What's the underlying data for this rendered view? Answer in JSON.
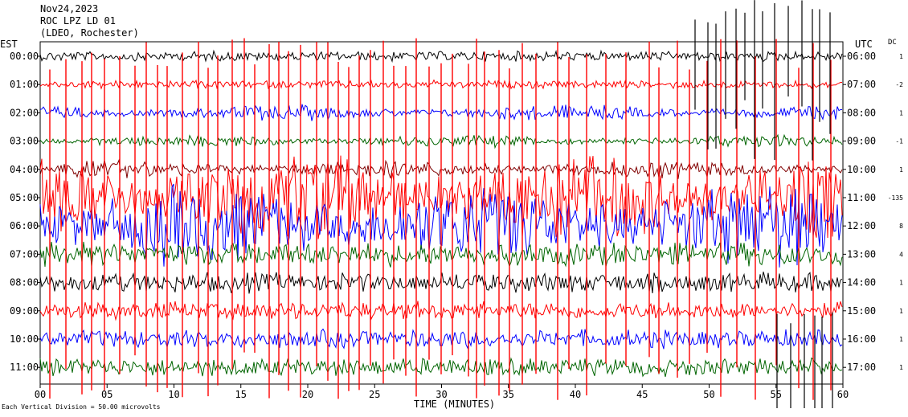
{
  "header": {
    "date": "Nov24,2023",
    "station": "ROC LPZ LD 01",
    "network": "(LDEO, Rochester)"
  },
  "axis": {
    "left_zone": "EST",
    "right_zone": "UTC",
    "dc_header": "DC",
    "xlabel": "TIME (MINUTES)",
    "footnote": "Each Vertical Division = 50.00 microvolts"
  },
  "chart_data": {
    "type": "line",
    "title": "",
    "xlabel": "TIME (MINUTES)",
    "xlim": [
      0,
      60
    ],
    "x_ticks": [
      "00",
      "05",
      "10",
      "15",
      "20",
      "25",
      "30",
      "35",
      "40",
      "45",
      "50",
      "55",
      "60"
    ],
    "grid": false,
    "rows": [
      {
        "est": "00:00",
        "utc": "06:00",
        "dc": "1",
        "color": "#000000"
      },
      {
        "est": "01:00",
        "utc": "07:00",
        "dc": "-2",
        "color": "#ff0000"
      },
      {
        "est": "02:00",
        "utc": "08:00",
        "dc": "1",
        "color": "#0000ff"
      },
      {
        "est": "03:00",
        "utc": "09:00",
        "dc": "-1",
        "color": "#006400"
      },
      {
        "est": "04:00",
        "utc": "10:00",
        "dc": "1",
        "color": "#800000"
      },
      {
        "est": "05:00",
        "utc": "11:00",
        "dc": "-135",
        "color": "#ff0000"
      },
      {
        "est": "06:00",
        "utc": "12:00",
        "dc": "8",
        "color": "#0000ff"
      },
      {
        "est": "07:00",
        "utc": "13:00",
        "dc": "4",
        "color": "#006400"
      },
      {
        "est": "08:00",
        "utc": "14:00",
        "dc": "1",
        "color": "#000000"
      },
      {
        "est": "09:00",
        "utc": "15:00",
        "dc": "1",
        "color": "#ff0000"
      },
      {
        "est": "10:00",
        "utc": "16:00",
        "dc": "1",
        "color": "#0000ff"
      },
      {
        "est": "11:00",
        "utc": "17:00",
        "dc": "1",
        "color": "#006400"
      }
    ]
  }
}
